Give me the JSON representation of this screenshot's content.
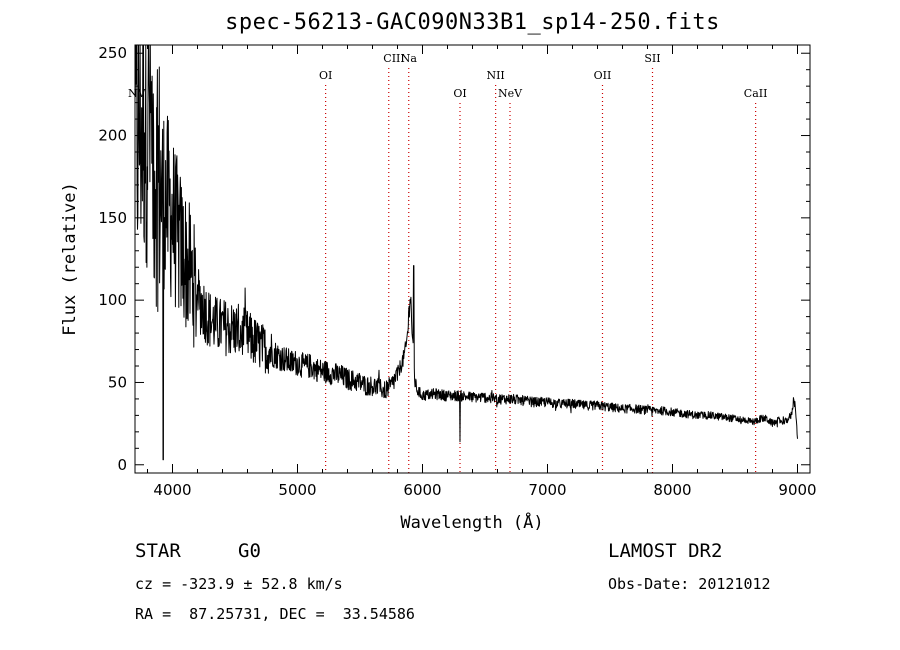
{
  "chart_data": {
    "type": "line",
    "title": "spec-56213-GAC090N33B1_sp14-250.fits",
    "xlabel": "Wavelength (Å)",
    "ylabel": "Flux (relative)",
    "xlim": [
      3700,
      9100
    ],
    "ylim": [
      -5,
      255
    ],
    "x_ticks": [
      4000,
      5000,
      6000,
      7000,
      8000,
      9000
    ],
    "y_ticks": [
      0,
      50,
      100,
      150,
      200,
      250
    ],
    "grid": false,
    "legend": "none",
    "line_color": "#000000",
    "marker_color": "#cc0000",
    "lines": [
      {
        "label": "NV",
        "wavelength": 3700,
        "row": "mid"
      },
      {
        "label": "OI",
        "wavelength": 5225,
        "row": "upper"
      },
      {
        "label": "CIII",
        "wavelength": 5730,
        "row": "top"
      },
      {
        "label": "Na",
        "wavelength": 5890,
        "row": "top"
      },
      {
        "label": "OI",
        "wavelength": 6300,
        "row": "mid"
      },
      {
        "label": "NII",
        "wavelength": 6585,
        "row": "upper"
      },
      {
        "label": "NeV",
        "wavelength": 6700,
        "row": "mid"
      },
      {
        "label": "OII",
        "wavelength": 7440,
        "row": "upper"
      },
      {
        "label": "SII",
        "wavelength": 7840,
        "row": "top"
      },
      {
        "label": "CaII",
        "wavelength": 8665,
        "row": "mid"
      }
    ],
    "spectrum": {
      "name": "",
      "x": [
        3700,
        3750,
        3800,
        3850,
        3900,
        3950,
        4000,
        4050,
        4100,
        4150,
        4200,
        4250,
        4300,
        4350,
        4400,
        4450,
        4500,
        4550,
        4600,
        4650,
        4700,
        4750,
        4800,
        4850,
        4900,
        4950,
        5000,
        5050,
        5100,
        5150,
        5200,
        5250,
        5300,
        5350,
        5400,
        5450,
        5500,
        5550,
        5600,
        5650,
        5700,
        5750,
        5800,
        5850,
        5870,
        5880,
        5890,
        5900,
        5910,
        5920,
        5940,
        5960,
        6000,
        6100,
        6200,
        6300,
        6400,
        6500,
        6600,
        6700,
        6800,
        6900,
        7000,
        7100,
        7200,
        7300,
        7400,
        7500,
        7600,
        7700,
        7800,
        7900,
        8000,
        8100,
        8200,
        8300,
        8400,
        8500,
        8600,
        8650,
        8700,
        8750,
        8800,
        8850,
        8900,
        8950,
        8970,
        8985,
        9000
      ],
      "y": [
        195,
        215,
        230,
        190,
        170,
        160,
        150,
        135,
        125,
        115,
        102,
        95,
        88,
        85,
        84,
        83,
        82,
        80,
        78,
        75,
        72,
        70,
        68,
        66,
        64,
        62,
        62,
        60,
        60,
        58,
        57,
        56,
        55,
        54,
        52,
        51,
        50,
        48,
        48,
        47,
        45,
        48,
        55,
        65,
        72,
        80,
        90,
        105,
        95,
        75,
        50,
        45,
        42,
        43,
        42,
        42,
        41,
        41,
        40,
        40,
        39,
        38,
        38,
        37,
        37,
        36,
        36,
        35,
        34,
        34,
        33,
        33,
        32,
        31,
        30,
        30,
        29,
        28,
        27,
        26,
        28,
        28,
        25,
        27,
        26,
        30,
        40,
        35,
        15
      ]
    },
    "noise": "strong at blue end (~3700-4700 Å), moderate elsewhere"
  },
  "info": {
    "object_type": "STAR",
    "subclass": "G0",
    "survey": "LAMOST DR2",
    "redshift_line": "cz = -323.9 ± 52.8 km/s",
    "obs_date_line": "Obs-Date: 20121012",
    "coords_line": "RA =  87.25731, DEC =  33.54586"
  }
}
